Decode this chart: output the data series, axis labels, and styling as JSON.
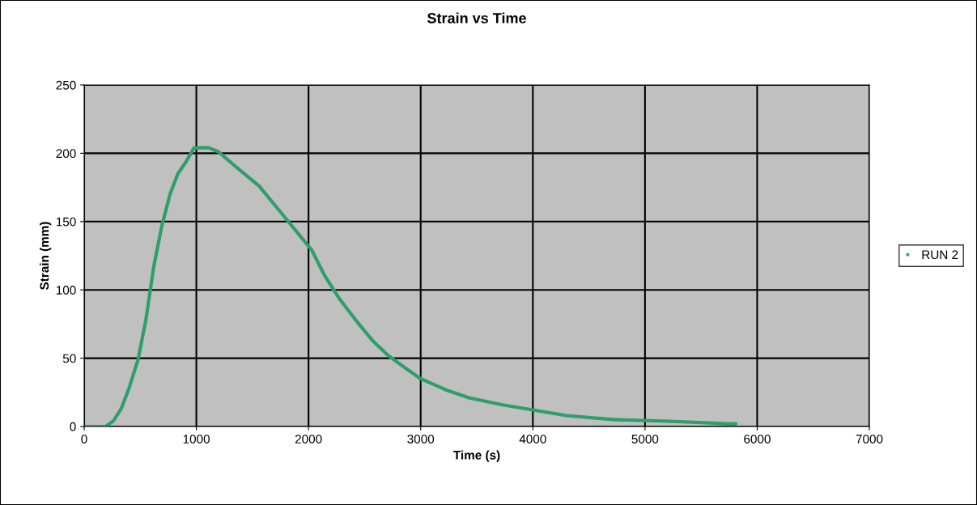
{
  "chart_data": {
    "type": "line",
    "title": "Strain vs Time",
    "xlabel": "Time (s)",
    "ylabel": "Strain (mm)",
    "xlim": [
      0,
      7000
    ],
    "xticks": [
      0,
      1000,
      2000,
      3000,
      4000,
      5000,
      6000,
      7000
    ],
    "ylim": [
      0,
      250
    ],
    "yticks": [
      0,
      50,
      100,
      150,
      200,
      250
    ],
    "grid": true,
    "legend": "right",
    "series": [
      {
        "name": "RUN 2",
        "color": "#2e9e6a",
        "x": [
          0,
          190,
          260,
          330,
          400,
          480,
          550,
          620,
          690,
          765,
          835,
          910,
          980,
          1110,
          1200,
          1340,
          1560,
          1740,
          1920,
          2030,
          2140,
          2280,
          2420,
          2570,
          2710,
          2860,
          3000,
          3220,
          3430,
          3720,
          4010,
          4300,
          4730,
          5170,
          5740,
          5810
        ],
        "values": [
          0,
          0,
          4,
          13,
          28,
          49,
          78,
          117,
          146,
          170,
          185,
          194,
          204,
          204,
          201,
          191,
          176,
          158,
          140,
          129,
          111,
          93,
          78,
          63,
          52,
          43,
          35,
          27,
          21,
          16,
          12,
          8,
          5,
          4,
          2,
          2
        ]
      }
    ]
  }
}
